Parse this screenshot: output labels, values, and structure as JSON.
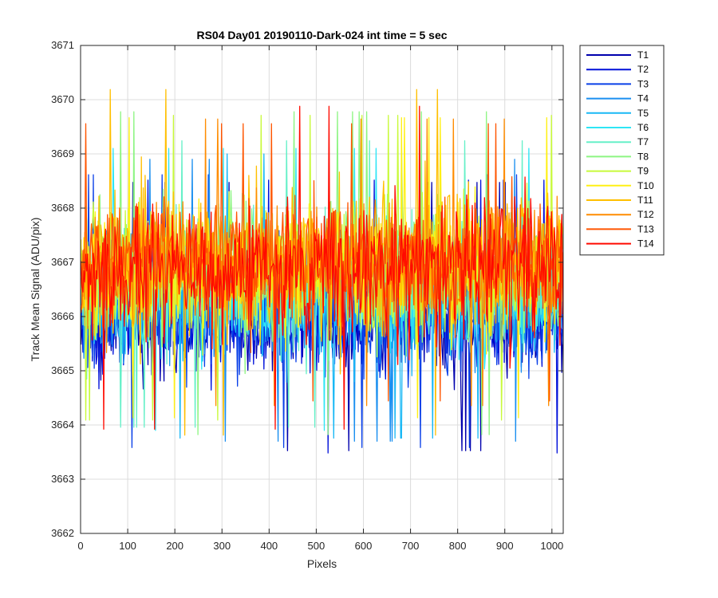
{
  "chart_data": {
    "type": "line",
    "title": "RS04 Day01 20190110-Dark-024 int time = 5 sec",
    "xlabel": "Pixels",
    "ylabel": "Track Mean Signal (ADU/pix)",
    "xlim": [
      0,
      1024
    ],
    "ylim": [
      3662,
      3671
    ],
    "xticks": [
      0,
      100,
      200,
      300,
      400,
      500,
      600,
      700,
      800,
      900,
      1000
    ],
    "yticks": [
      3662,
      3663,
      3664,
      3665,
      3666,
      3667,
      3668,
      3669,
      3670,
      3671
    ],
    "grid": true,
    "legend_position": "outside-top-right",
    "x": "pixel index 1–1024",
    "series": [
      {
        "name": "T1",
        "color": "#0000ad",
        "mean": 3666.0,
        "min": 3662.6,
        "max": 3668.5
      },
      {
        "name": "T2",
        "color": "#0010d9",
        "mean": 3666.0,
        "min": 3662.6,
        "max": 3668.6
      },
      {
        "name": "T3",
        "color": "#0a40e8",
        "mean": 3666.1,
        "min": 3662.7,
        "max": 3668.7
      },
      {
        "name": "T4",
        "color": "#1a8ff0",
        "mean": 3666.3,
        "min": 3662.7,
        "max": 3668.9
      },
      {
        "name": "T5",
        "color": "#19b8f5",
        "mean": 3666.4,
        "min": 3662.7,
        "max": 3669.0
      },
      {
        "name": "T6",
        "color": "#2ee5f5",
        "mean": 3666.5,
        "min": 3663.0,
        "max": 3669.2
      },
      {
        "name": "T7",
        "color": "#66f0c8",
        "mean": 3666.6,
        "min": 3663.2,
        "max": 3669.5
      },
      {
        "name": "T8",
        "color": "#8df582",
        "mean": 3666.8,
        "min": 3663.4,
        "max": 3670.5
      },
      {
        "name": "T9",
        "color": "#c8fa3a",
        "mean": 3666.9,
        "min": 3663.5,
        "max": 3670.2
      },
      {
        "name": "T10",
        "color": "#fff014",
        "mean": 3666.9,
        "min": 3663.7,
        "max": 3670.3
      },
      {
        "name": "T11",
        "color": "#ffbf00",
        "mean": 3667.0,
        "min": 3663.3,
        "max": 3670.9
      },
      {
        "name": "T12",
        "color": "#ff8c00",
        "mean": 3667.0,
        "min": 3663.8,
        "max": 3670.1
      },
      {
        "name": "T13",
        "color": "#ff5500",
        "mean": 3667.0,
        "min": 3663.9,
        "max": 3670.0
      },
      {
        "name": "T14",
        "color": "#ff0a00",
        "mean": 3666.9,
        "min": 3663.6,
        "max": 3670.7
      }
    ]
  }
}
